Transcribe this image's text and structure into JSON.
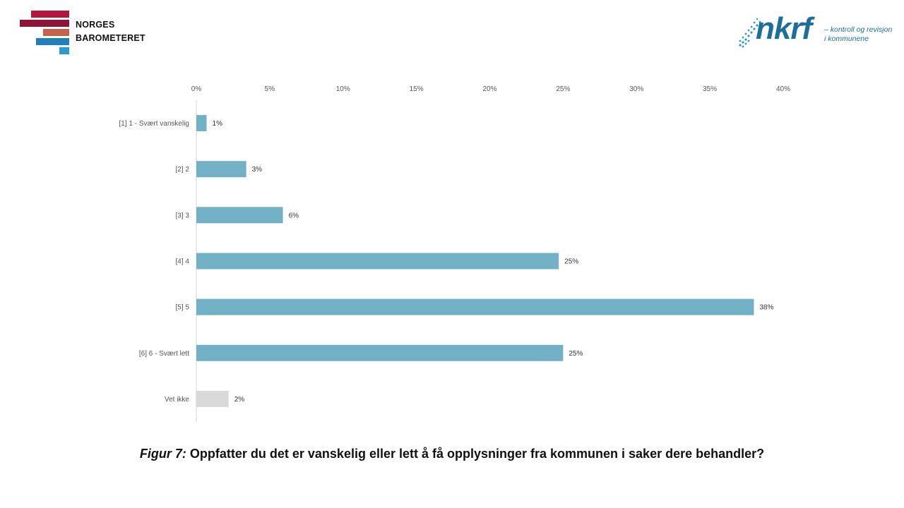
{
  "logos": {
    "left_line1": "NORGES",
    "left_line2": "BAROMETERET",
    "right_word": "nkrf",
    "right_tag_line1": "– kontroll og revisjon",
    "right_tag_line2": "i kommunene"
  },
  "caption": {
    "prefix": "Figur 7:",
    "text": "Oppfatter du det er vanskelig eller lett å få opplysninger fra kommunen i saker dere behandler?"
  },
  "colors": {
    "bar": "#72b0c6",
    "bar_muted": "#d9d9d9",
    "axis": "#d0d0d0",
    "logo_red": "#b5173a",
    "logo_darkred": "#8e1338",
    "logo_orange": "#c8604a",
    "logo_blue": "#1f7fb6",
    "logo_lightblue": "#2b9bd3"
  },
  "chart_data": {
    "type": "bar",
    "orientation": "horizontal",
    "categories": [
      "[1] 1 - Svært vanskelig",
      "[2] 2",
      "[3] 3",
      "[4] 4",
      "[5] 5",
      "[6] 6 - Svært lett",
      "Vet ikke"
    ],
    "values": [
      0.7,
      3.4,
      5.9,
      24.7,
      38.0,
      25.0,
      2.2
    ],
    "data_labels": [
      "1%",
      "3%",
      "6%",
      "25%",
      "38%",
      "25%",
      "2%"
    ],
    "muted": [
      false,
      false,
      false,
      false,
      false,
      false,
      true
    ],
    "xlim": [
      0,
      40
    ],
    "xticks": [
      0,
      5,
      10,
      15,
      20,
      25,
      30,
      35,
      40
    ],
    "xtick_labels": [
      "0%",
      "5%",
      "10%",
      "15%",
      "20%",
      "25%",
      "30%",
      "35%",
      "40%"
    ],
    "axis_position": "top",
    "grid": false,
    "legend": "none"
  }
}
